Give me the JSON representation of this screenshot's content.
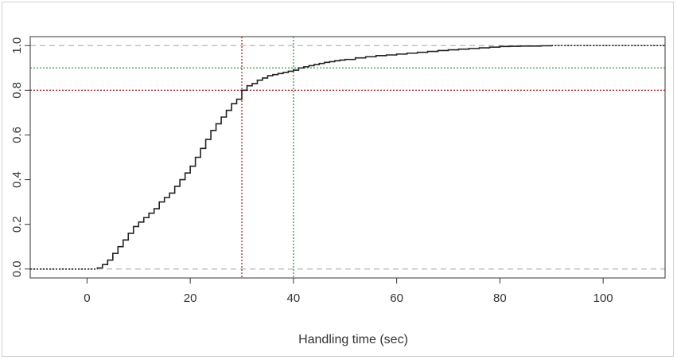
{
  "chart_data": {
    "type": "line",
    "subtype": "empirical-cdf-step",
    "title": "",
    "xlabel": "Handling time (sec)",
    "ylabel": "",
    "xlim": [
      -11,
      112
    ],
    "ylim": [
      -0.04,
      1.04
    ],
    "xticks": [
      0,
      20,
      40,
      60,
      80,
      100
    ],
    "xtick_labels": [
      "0",
      "20",
      "40",
      "60",
      "80",
      "100"
    ],
    "yticks": [
      0.0,
      0.2,
      0.4,
      0.6,
      0.8,
      1.0
    ],
    "ytick_labels": [
      "0.0",
      "0.2",
      "0.4",
      "0.6",
      "0.8",
      "1.0"
    ],
    "grid": false,
    "reference_lines": [
      {
        "orientation": "horizontal",
        "value": 0.0,
        "color": "#b5b5b5",
        "style": "dashed"
      },
      {
        "orientation": "horizontal",
        "value": 1.0,
        "color": "#b5b5b5",
        "style": "dashed"
      },
      {
        "orientation": "horizontal",
        "value": 0.9,
        "color": "#2f9b3a",
        "style": "dotted"
      },
      {
        "orientation": "horizontal",
        "value": 0.8,
        "color": "#c0272d",
        "style": "dotted"
      },
      {
        "orientation": "vertical",
        "value": 40,
        "color": "#2f9b3a",
        "style": "dotted"
      },
      {
        "orientation": "vertical",
        "value": 30,
        "color": "#c0272d",
        "style": "dotted"
      }
    ],
    "series": [
      {
        "color": "#222222",
        "x": [
          2,
          3,
          4,
          5,
          6,
          7,
          8,
          9,
          10,
          11,
          12,
          13,
          14,
          15,
          16,
          17,
          18,
          19,
          20,
          21,
          22,
          23,
          24,
          25,
          26,
          27,
          28,
          29,
          30,
          31,
          32,
          33,
          34,
          35,
          36,
          37,
          38,
          39,
          40,
          41,
          42,
          43,
          44,
          45,
          46,
          47,
          48,
          49,
          50,
          52,
          54,
          56,
          58,
          60,
          62,
          64,
          66,
          68,
          70,
          72,
          74,
          76,
          78,
          80,
          82,
          84,
          86,
          88,
          90
        ],
        "y": [
          0.005,
          0.02,
          0.04,
          0.07,
          0.1,
          0.13,
          0.16,
          0.19,
          0.21,
          0.23,
          0.25,
          0.27,
          0.3,
          0.32,
          0.34,
          0.37,
          0.4,
          0.43,
          0.46,
          0.5,
          0.54,
          0.58,
          0.62,
          0.65,
          0.68,
          0.71,
          0.74,
          0.76,
          0.8,
          0.82,
          0.83,
          0.845,
          0.855,
          0.865,
          0.87,
          0.875,
          0.88,
          0.885,
          0.89,
          0.9,
          0.905,
          0.91,
          0.915,
          0.92,
          0.925,
          0.928,
          0.932,
          0.935,
          0.938,
          0.945,
          0.95,
          0.955,
          0.958,
          0.962,
          0.966,
          0.97,
          0.974,
          0.978,
          0.981,
          0.984,
          0.987,
          0.99,
          0.993,
          0.996,
          0.997,
          0.998,
          0.998,
          0.999,
          1.0
        ]
      }
    ]
  }
}
